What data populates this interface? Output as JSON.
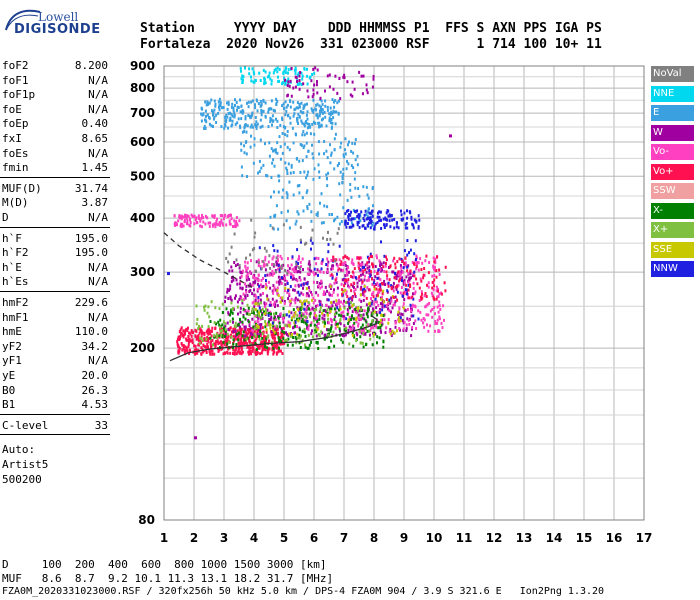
{
  "logo": {
    "line1": "Lowell",
    "line2": "DIGISONDE"
  },
  "header": {
    "row1": "Station     YYYY DAY    DDD HHMMSS P1  FFS S AXN PPS IGA PS",
    "row2": "Fortaleza  2020 Nov26  331 023000 RSF      1 714 100 10+ 11"
  },
  "params": {
    "group1": [
      {
        "label": "foF2",
        "value": "8.200"
      },
      {
        "label": "foF1",
        "value": "N/A"
      },
      {
        "label": "foF1p",
        "value": "N/A"
      },
      {
        "label": "foE",
        "value": "N/A"
      },
      {
        "label": "foEp",
        "value": "0.40"
      },
      {
        "label": "fxI",
        "value": "8.65"
      },
      {
        "label": "foEs",
        "value": "N/A"
      },
      {
        "label": "fmin",
        "value": "1.45"
      }
    ],
    "group2": [
      {
        "label": "MUF(D)",
        "value": "31.74"
      },
      {
        "label": "M(D)",
        "value": "3.87"
      },
      {
        "label": "D",
        "value": "N/A"
      }
    ],
    "group3": [
      {
        "label": "h`F",
        "value": "195.0"
      },
      {
        "label": "h`F2",
        "value": "195.0"
      },
      {
        "label": "h`E",
        "value": "N/A"
      },
      {
        "label": "h`Es",
        "value": "N/A"
      }
    ],
    "group4": [
      {
        "label": "hmF2",
        "value": "229.6"
      },
      {
        "label": "hmF1",
        "value": "N/A"
      },
      {
        "label": "hmE",
        "value": "110.0"
      },
      {
        "label": "yF2",
        "value": "34.2"
      },
      {
        "label": "yF1",
        "value": "N/A"
      },
      {
        "label": "yE",
        "value": "20.0"
      },
      {
        "label": "B0",
        "value": "26.3"
      },
      {
        "label": "B1",
        "value": "4.53"
      }
    ],
    "clevel": {
      "label": "C-level",
      "value": "33"
    },
    "auto": [
      "Auto:",
      "Artist5",
      "500200"
    ]
  },
  "legend": [
    {
      "label": "NoVal",
      "color": "#808080"
    },
    {
      "label": "NNE",
      "color": "#00d8f0"
    },
    {
      "label": "E",
      "color": "#3aa0e0"
    },
    {
      "label": "W",
      "color": "#a000a0"
    },
    {
      "label": "Vo-",
      "color": "#ff40c0"
    },
    {
      "label": "Vo+",
      "color": "#ff1050"
    },
    {
      "label": "SSW",
      "color": "#f0a0a0"
    },
    {
      "label": "X-",
      "color": "#008000"
    },
    {
      "label": "X+",
      "color": "#80c040"
    },
    {
      "label": "SSE",
      "color": "#c8c800"
    },
    {
      "label": "NNW",
      "color": "#2020e0"
    }
  ],
  "footer": {
    "row1": "D     100  200  400  600  800 1000 1500 3000 [km]",
    "row2": "MUF   8.6  8.7  9.2 10.1 11.3 13.1 18.2 31.7 [MHz]",
    "row3": "FZA0M_2020331023000.RSF / 320fx256h 50 kHz 5.0 km / DPS-4 FZA0M 904 / 3.9 S 321.6 E   Ion2Png 1.3.20"
  },
  "chart_data": {
    "type": "scatter",
    "xlim": [
      1,
      17
    ],
    "ylim": [
      80,
      900
    ],
    "y_scale": "log",
    "x_ticks": [
      "1",
      "2",
      "3",
      "4",
      "5",
      "6",
      "7",
      "8",
      "9",
      "10",
      "11",
      "12",
      "13",
      "14",
      "15",
      "16",
      "17"
    ],
    "y_ticks": [
      "80",
      "200",
      "300",
      "400",
      "500",
      "600",
      "700",
      "800",
      "900"
    ],
    "y_tick_values": [
      80,
      200,
      300,
      400,
      500,
      600,
      700,
      800,
      900
    ],
    "grid": true,
    "regions": [
      {
        "color": "#ff1050",
        "x": [
          1.4,
          5.0
        ],
        "y": [
          195,
          225
        ],
        "n": 520
      },
      {
        "color": "#a000a0",
        "x": [
          3.0,
          9.3
        ],
        "y": [
          215,
          320
        ],
        "n": 560
      },
      {
        "color": "#ff40c0",
        "x": [
          3.5,
          10.3
        ],
        "y": [
          220,
          330
        ],
        "n": 520
      },
      {
        "color": "#008000",
        "x": [
          2.5,
          8.3
        ],
        "y": [
          200,
          250
        ],
        "n": 240
      },
      {
        "color": "#80c040",
        "x": [
          2.0,
          8.0
        ],
        "y": [
          205,
          260
        ],
        "n": 150
      },
      {
        "color": "#c8c800",
        "x": [
          4.0,
          9.0
        ],
        "y": [
          215,
          280
        ],
        "n": 90
      },
      {
        "color": "#3aa0e0",
        "x": [
          2.2,
          6.8
        ],
        "y": [
          650,
          760
        ],
        "n": 320
      },
      {
        "color": "#3aa0e0",
        "x": [
          3.5,
          7.5
        ],
        "y": [
          500,
          640
        ],
        "n": 140
      },
      {
        "color": "#00d8f0",
        "x": [
          3.5,
          6.0
        ],
        "y": [
          820,
          900
        ],
        "n": 90
      },
      {
        "color": "#3aa0e0",
        "x": [
          4.5,
          8.0
        ],
        "y": [
          380,
          500
        ],
        "n": 100
      },
      {
        "color": "#2020e0",
        "x": [
          7.0,
          9.5
        ],
        "y": [
          380,
          420
        ],
        "n": 130
      },
      {
        "color": "#2020e0",
        "x": [
          4.0,
          9.5
        ],
        "y": [
          230,
          360
        ],
        "n": 110
      },
      {
        "color": "#ff40c0",
        "x": [
          1.3,
          3.5
        ],
        "y": [
          385,
          410
        ],
        "n": 110
      },
      {
        "color": "#ff1050",
        "x": [
          6.5,
          10.4
        ],
        "y": [
          260,
          330
        ],
        "n": 140
      },
      {
        "color": "#a000a0",
        "x": [
          5.0,
          8.0
        ],
        "y": [
          760,
          900
        ],
        "n": 60
      },
      {
        "color": "#808080",
        "x": [
          3.0,
          7.0
        ],
        "y": [
          300,
          400
        ],
        "n": 50
      }
    ],
    "curves": [
      {
        "style": "solid",
        "x": [
          1.2,
          1.8,
          2.5,
          3.5,
          4.5,
          5.5,
          6.5,
          7.2,
          7.8,
          8.1,
          8.1,
          7.9
        ],
        "y": [
          187,
          195,
          199,
          202,
          205,
          207,
          212,
          218,
          224,
          228,
          233,
          238
        ]
      },
      {
        "style": "dashed",
        "x": [
          1.0,
          1.5,
          2.2,
          3.0,
          3.6,
          4.0
        ],
        "y": [
          370,
          345,
          320,
          300,
          285,
          275
        ]
      }
    ]
  }
}
